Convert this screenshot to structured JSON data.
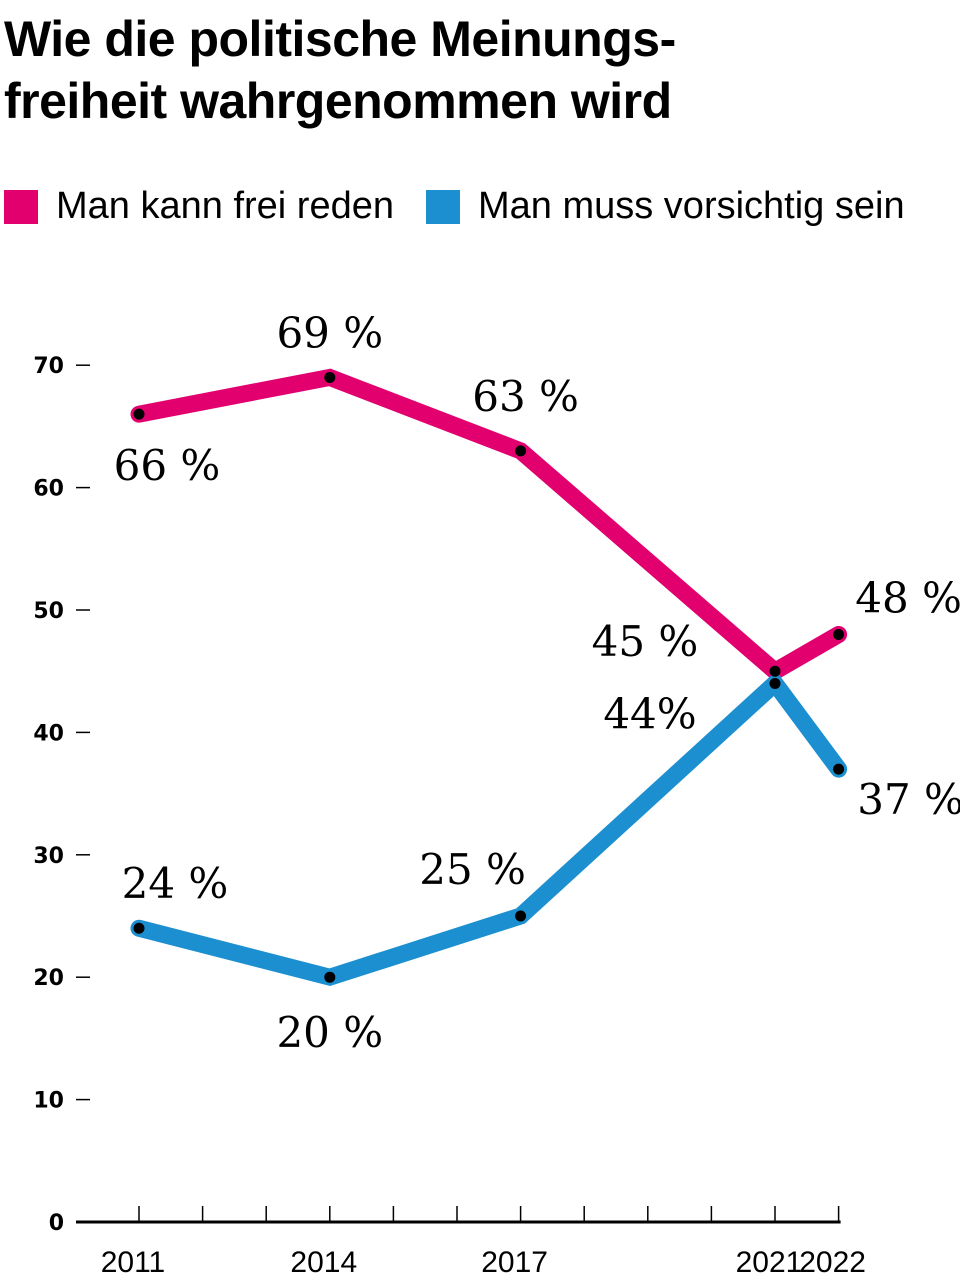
{
  "chart_data": {
    "type": "line",
    "title": "Wie die politische Meinungs-freiheit wahrgenommen wird",
    "title_lines": [
      "Wie die politische Meinungs-",
      "freiheit wahrgenommen wird"
    ],
    "x": [
      2011,
      2014,
      2017,
      2021,
      2022
    ],
    "x_tick_labels": [
      "2011",
      "2014",
      "2017",
      "2021",
      "2022"
    ],
    "xlim": [
      2011,
      2022
    ],
    "ylim": [
      0,
      70
    ],
    "y_ticks": [
      0,
      10,
      20,
      30,
      40,
      50,
      60,
      70
    ],
    "xlabel": "",
    "ylabel": "",
    "grid": false,
    "legend_position": "top",
    "series": [
      {
        "name": "Man kann frei reden",
        "color": "#e2006f",
        "values": [
          66,
          69,
          63,
          45,
          48
        ],
        "labels": [
          "66 %",
          "69 %",
          "63 %",
          "45 %",
          "48 %"
        ]
      },
      {
        "name": "Man muss vorsichtig sein",
        "color": "#1b8fd0",
        "values": [
          24,
          20,
          25,
          44,
          37
        ],
        "labels": [
          "24 %",
          "20 %",
          "25 %",
          "44%",
          "37 %"
        ]
      }
    ]
  }
}
